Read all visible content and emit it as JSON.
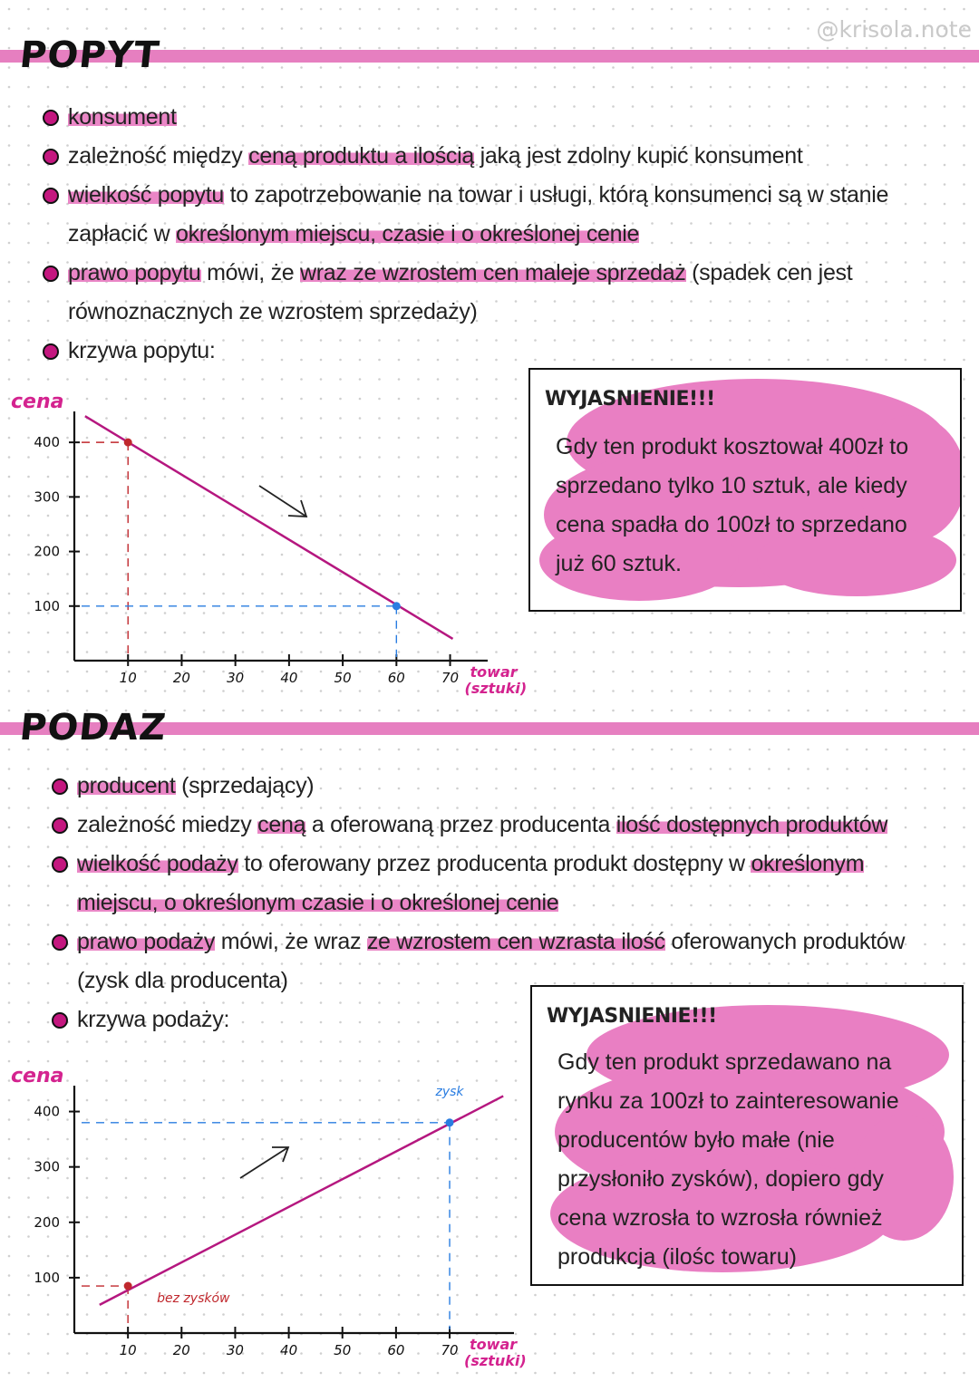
{
  "watermark": "@krisola.note",
  "sections": [
    {
      "title": "POPYT",
      "bullets": [
        [
          {
            "text": "konsument",
            "hl": true
          }
        ],
        [
          {
            "text": "zależność między "
          },
          {
            "text": "ceną produktu a ilością",
            "hl": true
          },
          {
            "text": " jaką jest zdolny kupić konsument"
          }
        ],
        [
          {
            "text": "wielkość popytu",
            "hl": true
          },
          {
            "text": " to zapotrzebowanie na towar i usługi, którą konsumenci są w stanie zapłacić w "
          },
          {
            "text": "określonym miejscu, czasie i o określonej cenie",
            "hl": true
          }
        ],
        [
          {
            "text": "prawo popytu",
            "hl": true
          },
          {
            "text": " mówi, że "
          },
          {
            "text": "wraz ze wzrostem cen maleje sprzedaż",
            "hl": true
          },
          {
            "text": " (spadek cen jest równoznacznych ze wzrostem sprzedaży)"
          }
        ],
        [
          {
            "text": "krzywa popytu:"
          }
        ]
      ],
      "box": {
        "title": "WYJASNIENIE!!!",
        "text": "Gdy ten produkt kosztował 400zł to sprzedano tylko 10 sztuk, ale kiedy cena spadła do 100zł to sprzedano już 60 sztuk."
      }
    },
    {
      "title": "PODAZ",
      "bullets": [
        [
          {
            "text": "producent",
            "hl": true
          },
          {
            "text": " (sprzedający)"
          }
        ],
        [
          {
            "text": "zależność miedzy "
          },
          {
            "text": "ceną",
            "hl": true
          },
          {
            "text": " a oferowaną przez producenta "
          },
          {
            "text": "ilość dostępnych produktów",
            "hl": true
          }
        ],
        [
          {
            "text": "wielkość podaży",
            "hl": true
          },
          {
            "text": " to oferowany przez producenta produkt dostępny w "
          },
          {
            "text": "określonym miejscu, o określonym czasie i o określonej cenie",
            "hl": true
          }
        ],
        [
          {
            "text": "prawo podaży",
            "hl": true
          },
          {
            "text": " mówi, że wraz "
          },
          {
            "text": "ze wzrostem cen wzrasta ilość",
            "hl": true
          },
          {
            "text": " oferowanych produktów (zysk dla producenta)"
          }
        ],
        [
          {
            "text": "krzywa podaży:"
          }
        ]
      ],
      "box": {
        "title": "WYJASNIENIE!!!",
        "text": "Gdy ten produkt sprzedawano na rynku za 100zł to zainteresowanie producentów było małe (nie przysłoniło zysków), dopiero gdy cena wzrosła to wzrosła również produkcja (ilośc towaru)"
      }
    }
  ],
  "chart_data": [
    {
      "type": "line",
      "ylabel": "cena",
      "xlabel": [
        "towar",
        "(sztuki)"
      ],
      "xlim": [
        0,
        77
      ],
      "ylim": [
        0,
        460
      ],
      "xticks": [
        10,
        20,
        30,
        40,
        50,
        60,
        70
      ],
      "yticks": [
        100,
        200,
        300,
        400
      ],
      "line": {
        "x": [
          2,
          70.5
        ],
        "values": [
          448,
          40
        ],
        "color": "#b5177f"
      },
      "points": {
        "x": [
          10,
          60
        ],
        "values": [
          400,
          100
        ],
        "colors": [
          "#c0282d",
          "#2a7de1"
        ]
      }
    },
    {
      "type": "line",
      "ylabel": "cena",
      "xlabel": [
        "towar",
        "(sztuki)"
      ],
      "xlim": [
        0,
        82
      ],
      "ylim": [
        0,
        450
      ],
      "xticks": [
        10,
        20,
        30,
        40,
        50,
        60,
        70
      ],
      "yticks": [
        100,
        200,
        300,
        400
      ],
      "line": {
        "x": [
          4.7,
          80
        ],
        "values": [
          51,
          428
        ],
        "color": "#b5177f"
      },
      "points": {
        "x": [
          10,
          70
        ],
        "values": [
          85,
          380
        ],
        "colors": [
          "#c0282d",
          "#2a7de1"
        ]
      },
      "annotations": [
        {
          "text": "zysk",
          "color": "#2a7de1"
        },
        {
          "text": "bez zysków",
          "color": "#c0282d"
        }
      ]
    }
  ]
}
